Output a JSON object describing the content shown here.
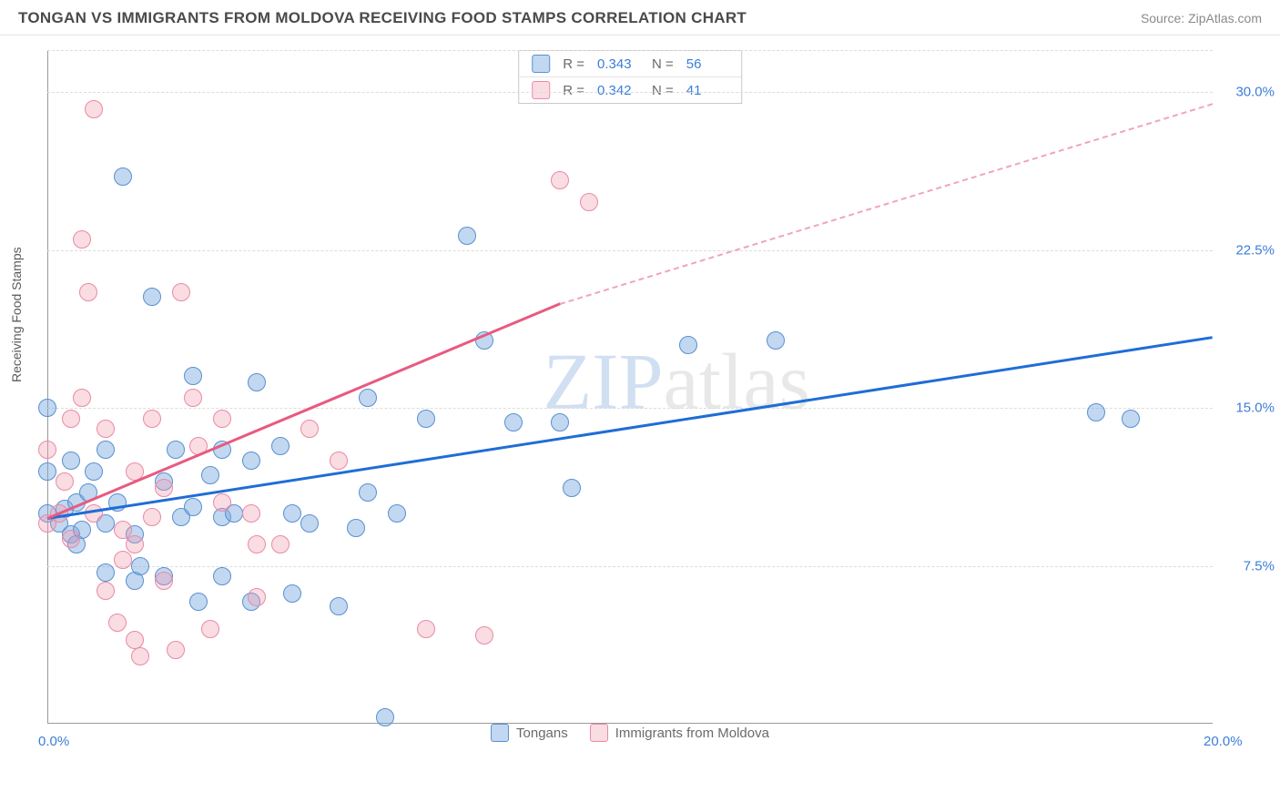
{
  "header": {
    "title": "TONGAN VS IMMIGRANTS FROM MOLDOVA RECEIVING FOOD STAMPS CORRELATION CHART",
    "source_label": "Source: ",
    "source_text": "ZipAtlas.com"
  },
  "chart": {
    "type": "scatter",
    "ylabel": "Receiving Food Stamps",
    "background_color": "#ffffff",
    "grid_color": "#dcdcdc",
    "xlim": [
      0,
      20
    ],
    "ylim": [
      0,
      32
    ],
    "x_ticks": [
      {
        "pos": 0,
        "label": "0.0%"
      },
      {
        "pos": 20,
        "label": "20.0%"
      }
    ],
    "y_ticks": [
      {
        "pos": 7.5,
        "label": "7.5%"
      },
      {
        "pos": 15.0,
        "label": "15.0%"
      },
      {
        "pos": 22.5,
        "label": "22.5%"
      },
      {
        "pos": 30.0,
        "label": "30.0%"
      }
    ],
    "y_gridlines": [
      7.5,
      15.0,
      22.5,
      30.0,
      32
    ],
    "marker_radius": 10,
    "series": [
      {
        "name": "Tongans",
        "color_fill": "rgba(119,168,223,0.45)",
        "color_stroke": "#5a8fd0",
        "r_label": "R = ",
        "r_value": "0.343",
        "n_label": "N = ",
        "n_value": "56",
        "trend": {
          "x1": 0,
          "y1": 9.8,
          "x2": 20,
          "y2": 18.4,
          "color": "#1f6dd6"
        },
        "points": [
          [
            0,
            10
          ],
          [
            0,
            12
          ],
          [
            0,
            15
          ],
          [
            0.2,
            9.5
          ],
          [
            0.3,
            10.2
          ],
          [
            0.4,
            9
          ],
          [
            0.4,
            12.5
          ],
          [
            0.5,
            10.5
          ],
          [
            0.6,
            9.2
          ],
          [
            0.7,
            11
          ],
          [
            0.8,
            12
          ],
          [
            1,
            13
          ],
          [
            1,
            9.5
          ],
          [
            1,
            7.2
          ],
          [
            1.2,
            10.5
          ],
          [
            1.3,
            26
          ],
          [
            1.5,
            6.8
          ],
          [
            1.5,
            9
          ],
          [
            1.6,
            7.5
          ],
          [
            1.8,
            20.3
          ],
          [
            2,
            11.5
          ],
          [
            2,
            7
          ],
          [
            2.2,
            13
          ],
          [
            2.3,
            9.8
          ],
          [
            2.5,
            10.3
          ],
          [
            2.5,
            16.5
          ],
          [
            2.6,
            5.8
          ],
          [
            2.8,
            11.8
          ],
          [
            3,
            13
          ],
          [
            3,
            9.8
          ],
          [
            3,
            7
          ],
          [
            3.2,
            10
          ],
          [
            3.5,
            12.5
          ],
          [
            3.5,
            5.8
          ],
          [
            3.6,
            16.2
          ],
          [
            4,
            13.2
          ],
          [
            4.2,
            10
          ],
          [
            4.2,
            6.2
          ],
          [
            4.5,
            9.5
          ],
          [
            5,
            5.6
          ],
          [
            5.3,
            9.3
          ],
          [
            5.5,
            15.5
          ],
          [
            5.5,
            11
          ],
          [
            5.8,
            0.3
          ],
          [
            6,
            10
          ],
          [
            6.5,
            14.5
          ],
          [
            7.2,
            23.2
          ],
          [
            7.5,
            18.2
          ],
          [
            8,
            14.3
          ],
          [
            8.8,
            14.3
          ],
          [
            9,
            11.2
          ],
          [
            11,
            18
          ],
          [
            12.5,
            18.2
          ],
          [
            18,
            14.8
          ],
          [
            18.6,
            14.5
          ],
          [
            0.5,
            8.5
          ]
        ]
      },
      {
        "name": "Immigrants from Moldova",
        "color_fill": "rgba(240,155,175,0.35)",
        "color_stroke": "#e98aa5",
        "r_label": "R = ",
        "r_value": "0.342",
        "n_label": "N = ",
        "n_value": "41",
        "trend": {
          "x1": 0,
          "y1": 9.8,
          "x2": 8.8,
          "y2": 20.0,
          "color": "#e85a7f",
          "dash_to_x": 20,
          "dash_to_y": 29.5
        },
        "points": [
          [
            0,
            9.5
          ],
          [
            0,
            13
          ],
          [
            0.2,
            10
          ],
          [
            0.3,
            11.5
          ],
          [
            0.4,
            8.8
          ],
          [
            0.4,
            14.5
          ],
          [
            0.6,
            15.5
          ],
          [
            0.6,
            23
          ],
          [
            0.7,
            20.5
          ],
          [
            0.8,
            29.2
          ],
          [
            0.8,
            10
          ],
          [
            1,
            14
          ],
          [
            1,
            6.3
          ],
          [
            1.2,
            4.8
          ],
          [
            1.3,
            9.2
          ],
          [
            1.3,
            7.8
          ],
          [
            1.5,
            12
          ],
          [
            1.5,
            4
          ],
          [
            1.5,
            8.5
          ],
          [
            1.6,
            3.2
          ],
          [
            1.8,
            14.5
          ],
          [
            1.8,
            9.8
          ],
          [
            2,
            11.2
          ],
          [
            2,
            6.8
          ],
          [
            2.2,
            3.5
          ],
          [
            2.3,
            20.5
          ],
          [
            2.5,
            15.5
          ],
          [
            2.6,
            13.2
          ],
          [
            2.8,
            4.5
          ],
          [
            3,
            14.5
          ],
          [
            3,
            10.5
          ],
          [
            3.5,
            10
          ],
          [
            3.6,
            8.5
          ],
          [
            3.6,
            6
          ],
          [
            4,
            8.5
          ],
          [
            4.5,
            14
          ],
          [
            5,
            12.5
          ],
          [
            6.5,
            4.5
          ],
          [
            7.5,
            4.2
          ],
          [
            8.8,
            25.8
          ],
          [
            9.3,
            24.8
          ]
        ]
      }
    ],
    "legend": {
      "s1": "Tongans",
      "s2": "Immigrants from Moldova"
    },
    "watermark": {
      "part1": "ZIP",
      "part2": "atlas"
    }
  }
}
